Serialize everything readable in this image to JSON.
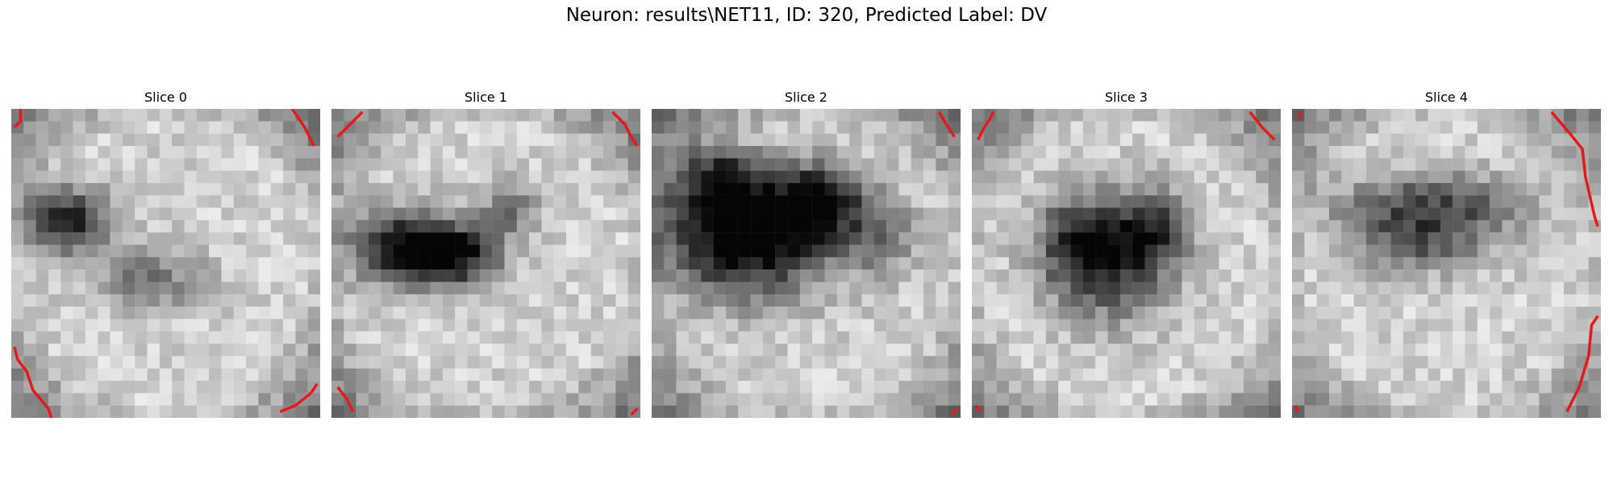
{
  "figure": {
    "title": "Neuron: results\\NET11, ID: 320, Predicted Label: DV",
    "slices": [
      {
        "label": "Slice 0",
        "dark_blobs": [
          [
            0.18,
            0.36,
            0.14,
            0.1,
            0.75
          ],
          [
            0.45,
            0.55,
            0.18,
            0.1,
            0.35
          ]
        ]
      },
      {
        "label": "Slice 1",
        "dark_blobs": [
          [
            0.22,
            0.45,
            0.18,
            0.12,
            0.7
          ],
          [
            0.4,
            0.47,
            0.15,
            0.1,
            0.7
          ],
          [
            0.58,
            0.32,
            0.09,
            0.08,
            0.4
          ]
        ]
      },
      {
        "label": "Slice 2",
        "dark_blobs": [
          [
            0.3,
            0.4,
            0.28,
            0.2,
            0.95
          ],
          [
            0.55,
            0.3,
            0.15,
            0.12,
            0.6
          ],
          [
            0.22,
            0.22,
            0.12,
            0.09,
            0.45
          ],
          [
            0.75,
            0.42,
            0.12,
            0.12,
            0.3
          ]
        ]
      },
      {
        "label": "Slice 3",
        "dark_blobs": [
          [
            0.35,
            0.43,
            0.15,
            0.16,
            0.6
          ],
          [
            0.58,
            0.4,
            0.13,
            0.14,
            0.6
          ],
          [
            0.45,
            0.55,
            0.18,
            0.18,
            0.35
          ]
        ]
      },
      {
        "label": "Slice 4",
        "dark_blobs": [
          [
            0.45,
            0.32,
            0.3,
            0.11,
            0.55
          ],
          [
            0.4,
            0.45,
            0.22,
            0.09,
            0.35
          ]
        ]
      }
    ],
    "colors": {
      "outline": "#e31a1c",
      "colormap": "gray"
    }
  }
}
